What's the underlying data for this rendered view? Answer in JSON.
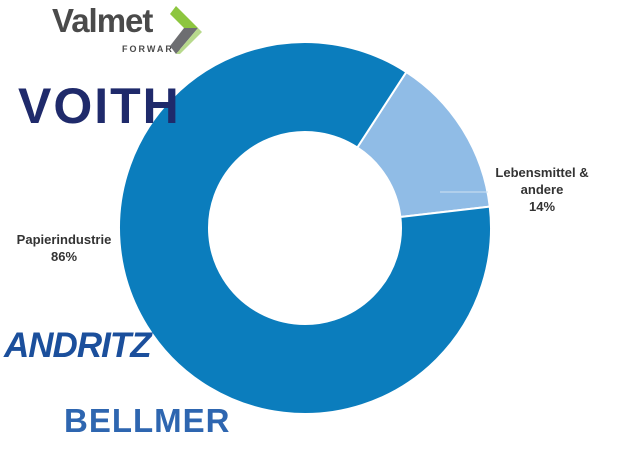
{
  "chart_data": {
    "type": "pie",
    "donut": true,
    "slices": [
      {
        "label": "Lebensmittel &\nandere",
        "value": 14,
        "value_label": "14%",
        "color": "#90bce6"
      },
      {
        "label": "Papierindustrie",
        "value": 86,
        "value_label": "86%",
        "color": "#0b7dbd"
      }
    ]
  },
  "logos": {
    "valmet": {
      "name": "Valmet",
      "tagline": "FORWARD",
      "mark_colors": [
        "#8dc63f",
        "#6d6e71"
      ]
    },
    "voith": {
      "name": "VOITH",
      "color": "#1f2a6b"
    },
    "andritz": {
      "name": "ANDRITZ",
      "color": "#1b4f9c"
    },
    "bellmer": {
      "name": "BELLMER",
      "color": "#2e66b0"
    }
  }
}
